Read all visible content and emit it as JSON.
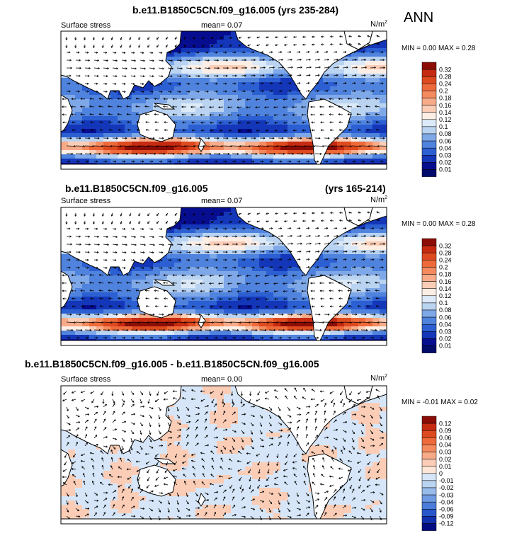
{
  "season": "ANN",
  "panels": [
    {
      "title_left": "b.e11.B1850C5CN.f09_g16.005 (yrs 235-284)",
      "title_right": "",
      "field": "Surface stress",
      "mean": "mean=   0.07",
      "units": "N/m",
      "units_exp": "2",
      "minmax": "MIN =  0.00 MAX =  0.28",
      "levels": [
        "0.32",
        "0.28",
        "0.24",
        "0.2",
        "0.18",
        "0.16",
        "0.14",
        "0.12",
        "0.1",
        "0.08",
        "0.06",
        "0.04",
        "0.03",
        "0.02",
        "0.01"
      ],
      "colors": [
        "#8c0d06",
        "#c62a10",
        "#de4a1f",
        "#ee6a3a",
        "#f48a5e",
        "#f8ab88",
        "#fbcdb6",
        "#fdeee5",
        "#dce9f8",
        "#b9d3f1",
        "#7fa8e8",
        "#4f83dd",
        "#2c5fd2",
        "#1436b8",
        "#060d8f",
        "#020a6a"
      ],
      "difference": false
    },
    {
      "title_left": "b.e11.B1850C5CN.f09_g16.005",
      "title_right": "(yrs 165-214)",
      "field": "Surface stress",
      "mean": "mean=   0.07",
      "units": "N/m",
      "units_exp": "2",
      "minmax": "MIN =  0.00 MAX =  0.28",
      "levels": [
        "0.32",
        "0.28",
        "0.24",
        "0.2",
        "0.18",
        "0.16",
        "0.14",
        "0.12",
        "0.1",
        "0.08",
        "0.06",
        "0.04",
        "0.03",
        "0.02",
        "0.01"
      ],
      "colors": [
        "#8c0d06",
        "#c62a10",
        "#de4a1f",
        "#ee6a3a",
        "#f48a5e",
        "#f8ab88",
        "#fbcdb6",
        "#fdeee5",
        "#dce9f8",
        "#b9d3f1",
        "#7fa8e8",
        "#4f83dd",
        "#2c5fd2",
        "#1436b8",
        "#060d8f",
        "#020a6a"
      ],
      "difference": false
    },
    {
      "title_left": "b.e11.B1850C5CN.f09_g16.005 - b.e11.B1850C5CN.f09_g16.005",
      "title_right": "",
      "field": "Surface stress",
      "mean": "mean=   0.00",
      "units": "N/m",
      "units_exp": "2",
      "minmax": "MIN = -0.01 MAX =  0.02",
      "levels": [
        "0.12",
        "0.09",
        "0.06",
        "0.04",
        "0.03",
        "0.02",
        "0.01",
        "0",
        "-0.01",
        "-0.02",
        "-0.03",
        "-0.04",
        "-0.06",
        "-0.09",
        "-0.12"
      ],
      "colors": [
        "#8c0d06",
        "#c62a10",
        "#de4a1f",
        "#ee6a3a",
        "#f48a5e",
        "#f8ab88",
        "#fbcdb6",
        "#fde6d8",
        "#d6e6f8",
        "#b9d3f1",
        "#97bbeb",
        "#6f9be3",
        "#4b7cd9",
        "#2857cc",
        "#1230ae",
        "#040c82"
      ],
      "difference": true
    }
  ]
}
